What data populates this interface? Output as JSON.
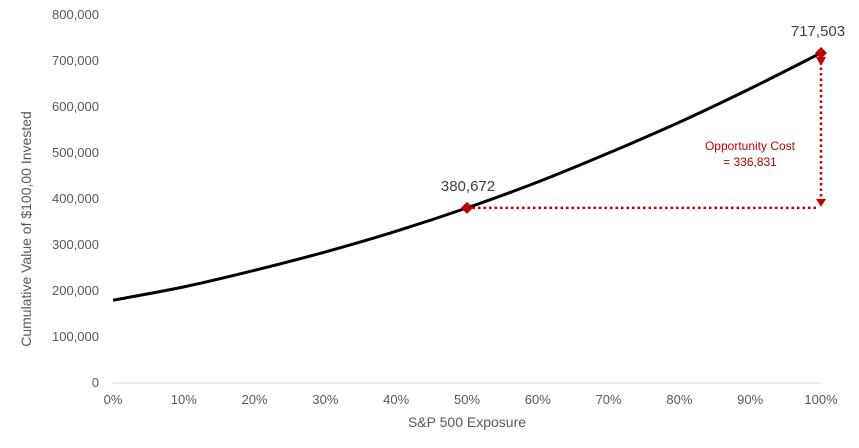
{
  "chart_data": {
    "type": "line",
    "xlabel": "S&P 500 Exposure",
    "ylabel": "Cumulative Value of $100,00 Invested",
    "xlim": [
      0,
      100
    ],
    "ylim": [
      0,
      800000
    ],
    "x_ticks": [
      "0%",
      "10%",
      "20%",
      "30%",
      "40%",
      "50%",
      "60%",
      "70%",
      "80%",
      "90%",
      "100%"
    ],
    "y_ticks": [
      "0",
      "100,000",
      "200,000",
      "300,000",
      "400,000",
      "500,000",
      "600,000",
      "700,000",
      "800,000"
    ],
    "x_tick_values": [
      0,
      10,
      20,
      30,
      40,
      50,
      60,
      70,
      80,
      90,
      100
    ],
    "y_tick_values": [
      0,
      100000,
      200000,
      300000,
      400000,
      500000,
      600000,
      700000,
      800000
    ],
    "series": [
      {
        "x": [
          0,
          10,
          20,
          30,
          40,
          50,
          60,
          70,
          80,
          90,
          100
        ],
        "values": [
          180000,
          209000,
          245000,
          285000,
          330000,
          380672,
          437000,
          500000,
          567000,
          640000,
          717503
        ]
      }
    ],
    "highlights": [
      {
        "x": 50,
        "y": 380672,
        "label": "380,672"
      },
      {
        "x": 100,
        "y": 717503,
        "label": "717,503"
      }
    ],
    "annotation": {
      "line1": "Opportunity Cost",
      "line2": "= 336,831"
    },
    "grid": false,
    "colors": {
      "line": "#000000",
      "accent": "#c00000",
      "axis": "#d9d9d9",
      "text": "#595959"
    }
  }
}
